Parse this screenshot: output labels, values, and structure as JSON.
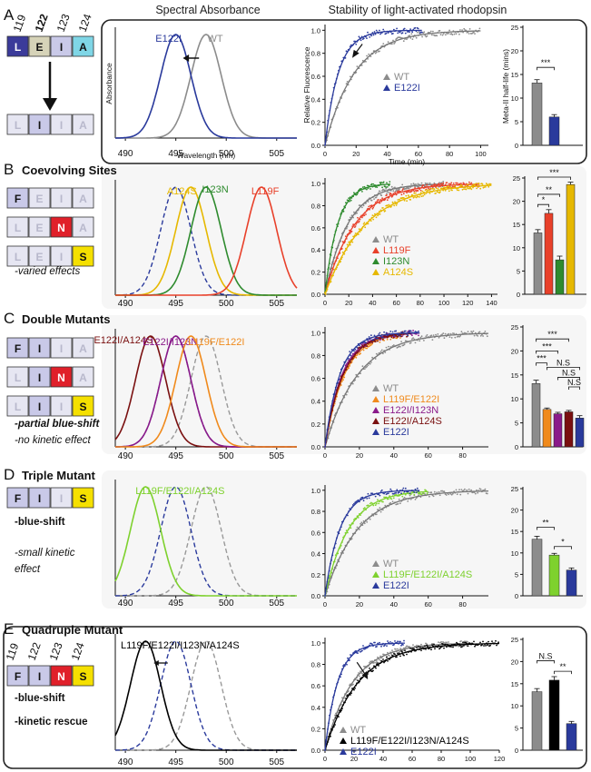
{
  "headers": {
    "spectral": "Spectral Absorbance",
    "stability": "Stability of light-activated rhodopsin"
  },
  "colors": {
    "wt": "#8c8c8c",
    "e122i": "#2a3a9c",
    "l119f": "#e8402a",
    "i123n": "#2e8b2e",
    "a124s": "#e6b800",
    "l119f_e122i": "#f08a1c",
    "e122i_i123n": "#8a1a8a",
    "e122i_a124s": "#7a1010",
    "triple": "#7ed12e",
    "quad": "#000000",
    "box_L": "#3b3b9a",
    "box_E": "#d6d3b8",
    "box_I": "#c9c9e8",
    "box_A": "#7fd6e6",
    "box_F": "#c9c9e8",
    "box_N": "#e0202a",
    "box_S": "#f5e000",
    "box_faded": "#e6e6f2"
  },
  "panels": [
    {
      "letter": "A",
      "title": "",
      "notes": [],
      "residues": [
        "119",
        "122",
        "123",
        "124"
      ],
      "boxes": [
        [
          "L",
          "E",
          "I",
          "A"
        ]
      ],
      "boxes_after": [
        "L",
        "I",
        "I",
        "A"
      ],
      "spec_labels": [
        {
          "text": "E122I",
          "series": "e122i"
        },
        {
          "text": "WT",
          "series": "wt"
        }
      ],
      "kin_legend": [
        {
          "text": "WT",
          "series": "wt"
        },
        {
          "text": "E122I",
          "series": "e122i"
        }
      ],
      "sig": [
        "***"
      ]
    },
    {
      "letter": "B",
      "title": "Coevolving Sites",
      "notes": [
        "-varied effects"
      ],
      "boxes": [
        [
          "F",
          "E",
          "I",
          "A"
        ],
        [
          "L",
          "E",
          "N",
          "A"
        ],
        [
          "L",
          "E",
          "I",
          "S"
        ]
      ],
      "spec_labels": [
        {
          "text": "A124S",
          "series": "a124s"
        },
        {
          "text": "I123N",
          "series": "i123n"
        },
        {
          "text": "L119F",
          "series": "l119f"
        }
      ],
      "kin_legend": [
        {
          "text": "WT",
          "series": "wt"
        },
        {
          "text": "L119F",
          "series": "l119f"
        },
        {
          "text": "I123N",
          "series": "i123n"
        },
        {
          "text": "A124S",
          "series": "a124s"
        }
      ],
      "sig": [
        "***",
        "**",
        "*"
      ]
    },
    {
      "letter": "C",
      "title": "Double Mutants",
      "notes": [
        "-partial blue-shift",
        "-no kinetic effect"
      ],
      "boxes": [
        [
          "F",
          "I",
          "I",
          "A"
        ],
        [
          "L",
          "I",
          "N",
          "A"
        ],
        [
          "L",
          "I",
          "I",
          "S"
        ]
      ],
      "spec_labels": [
        {
          "text": "E122I/A124S",
          "series": "e122i_a124s"
        },
        {
          "text": "E122I/I123N",
          "series": "e122i_i123n"
        },
        {
          "text": "L119F/E122I",
          "series": "l119f_e122i"
        }
      ],
      "kin_legend": [
        {
          "text": "WT",
          "series": "wt"
        },
        {
          "text": "L119F/E122I",
          "series": "l119f_e122i"
        },
        {
          "text": "E122I/I123N",
          "series": "e122i_i123n"
        },
        {
          "text": "E122I/A124S",
          "series": "e122i_a124s"
        },
        {
          "text": "E122I",
          "series": "e122i"
        }
      ],
      "sig": [
        "***",
        "***",
        "***",
        "N.S",
        "N.S",
        "N.S"
      ]
    },
    {
      "letter": "D",
      "title": "Triple Mutant",
      "notes": [
        "-blue-shift",
        "-small kinetic",
        "effect"
      ],
      "boxes": [
        [
          "F",
          "I",
          "I",
          "S"
        ]
      ],
      "spec_labels": [
        {
          "text": "L119F/E122I/A124S",
          "series": "triple"
        }
      ],
      "kin_legend": [
        {
          "text": "WT",
          "series": "wt"
        },
        {
          "text": "L119F/E122I/A124S",
          "series": "triple"
        },
        {
          "text": "E122I",
          "series": "e122i"
        }
      ],
      "sig": [
        "**",
        "*"
      ]
    },
    {
      "letter": "E",
      "title": "Quadruple Mutant",
      "notes": [
        "-blue-shift",
        "-kinetic rescue"
      ],
      "residues": [
        "119",
        "122",
        "123",
        "124"
      ],
      "boxes": [
        [
          "F",
          "I",
          "N",
          "S"
        ]
      ],
      "spec_labels": [
        {
          "text": "L119F/E122I/I123N/A124S",
          "series": "quad"
        }
      ],
      "kin_legend": [
        {
          "text": "WT",
          "series": "wt"
        },
        {
          "text": "L119F/E122I/I123N/A124S",
          "series": "quad"
        },
        {
          "text": "E122I",
          "series": "e122i"
        }
      ],
      "sig": [
        "N.S",
        "**"
      ]
    }
  ],
  "chart_data": [
    {
      "panel": "A-spectral",
      "type": "line",
      "xlabel": "Wavelength (nm)",
      "ylabel": "Absorbance",
      "xticks": [
        490,
        495,
        500,
        505
      ],
      "xlim": [
        489,
        507
      ],
      "series": [
        {
          "name": "WT",
          "peak": 498
        },
        {
          "name": "E122I",
          "peak": 495
        }
      ]
    },
    {
      "panel": "A-kinetics",
      "type": "scatter",
      "xlabel": "Time (min)",
      "ylabel": "Relative Fluorescence",
      "xticks": [
        0,
        20,
        40,
        60,
        80,
        100
      ],
      "yticks": [
        0.0,
        0.2,
        0.4,
        0.6,
        0.8,
        1.0
      ],
      "xlim": [
        0,
        105
      ],
      "ylim": [
        0,
        1.05
      ],
      "series": [
        {
          "name": "WT",
          "half_life": 13.2,
          "tmax": 100
        },
        {
          "name": "E122I",
          "half_life": 6.0,
          "tmax": 63
        }
      ]
    },
    {
      "panel": "A-halflife",
      "type": "bar",
      "ylabel": "Meta-II half-life (mins)",
      "yticks": [
        0,
        5,
        10,
        15,
        20,
        25
      ],
      "ylim": [
        0,
        25
      ],
      "categories": [
        "WT",
        "E122I"
      ],
      "values": [
        13.2,
        6.0
      ],
      "errors": [
        0.7,
        0.5
      ]
    },
    {
      "panel": "B-spectral",
      "type": "line",
      "xticks": [
        490,
        495,
        500,
        505
      ],
      "xlim": [
        489,
        507
      ],
      "series": [
        {
          "name": "E122I",
          "peak": 495,
          "dashed": true
        },
        {
          "name": "A124S",
          "peak": 496.5
        },
        {
          "name": "I123N",
          "peak": 498
        },
        {
          "name": "L119F",
          "peak": 503.5
        }
      ]
    },
    {
      "panel": "B-kinetics",
      "type": "scatter",
      "xticks": [
        0,
        20,
        40,
        60,
        80,
        100,
        120,
        140
      ],
      "yticks": [
        0.0,
        0.2,
        0.4,
        0.6,
        0.8,
        1.0
      ],
      "xlim": [
        0,
        145
      ],
      "ylim": [
        0,
        1.05
      ],
      "series": [
        {
          "name": "WT",
          "half_life": 13.2,
          "tmax": 100
        },
        {
          "name": "L119F",
          "half_life": 17.4,
          "tmax": 130
        },
        {
          "name": "I123N",
          "half_life": 7.4,
          "tmax": 55
        },
        {
          "name": "A124S",
          "half_life": 23.6,
          "tmax": 140
        }
      ]
    },
    {
      "panel": "B-halflife",
      "type": "bar",
      "yticks": [
        0,
        5,
        10,
        15,
        20,
        25
      ],
      "ylim": [
        0,
        25
      ],
      "categories": [
        "WT",
        "L119F",
        "I123N",
        "A124S"
      ],
      "values": [
        13.2,
        17.4,
        7.4,
        23.6
      ],
      "errors": [
        0.7,
        0.8,
        0.8,
        0.5
      ]
    },
    {
      "panel": "C-spectral",
      "type": "line",
      "xticks": [
        490,
        495,
        500,
        505
      ],
      "xlim": [
        489,
        507
      ],
      "series": [
        {
          "name": "WT",
          "peak": 498,
          "dashed": true
        },
        {
          "name": "E122I",
          "peak": 495,
          "dashed": true
        },
        {
          "name": "E122I/A124S",
          "peak": 492.5
        },
        {
          "name": "E122I/I123N",
          "peak": 495
        },
        {
          "name": "L119F/E122I",
          "peak": 496.5
        }
      ]
    },
    {
      "panel": "C-kinetics",
      "type": "scatter",
      "xticks": [
        0,
        20,
        40,
        60,
        80
      ],
      "yticks": [
        0.0,
        0.2,
        0.4,
        0.6,
        0.8,
        1.0
      ],
      "xlim": [
        0,
        95
      ],
      "ylim": [
        0,
        1.05
      ],
      "series": [
        {
          "name": "WT",
          "half_life": 13.2,
          "tmax": 95
        },
        {
          "name": "L119F/E122I",
          "half_life": 7.8,
          "tmax": 45
        },
        {
          "name": "E122I/I123N",
          "half_life": 6.9,
          "tmax": 55
        },
        {
          "name": "E122I/A124S",
          "half_life": 7.3,
          "tmax": 50
        },
        {
          "name": "E122I",
          "half_life": 6.0,
          "tmax": 55
        }
      ]
    },
    {
      "panel": "C-halflife",
      "type": "bar",
      "yticks": [
        0,
        5,
        10,
        15,
        20,
        25
      ],
      "ylim": [
        0,
        25
      ],
      "categories": [
        "WT",
        "L119F/E122I",
        "E122I/I123N",
        "E122I/A124S",
        "E122I"
      ],
      "values": [
        13.2,
        7.8,
        6.9,
        7.3,
        6.0
      ],
      "errors": [
        0.7,
        0.3,
        0.3,
        0.3,
        0.5
      ]
    },
    {
      "panel": "D-spectral",
      "type": "line",
      "xticks": [
        490,
        495,
        500,
        505
      ],
      "xlim": [
        489,
        507
      ],
      "series": [
        {
          "name": "WT",
          "peak": 498,
          "dashed": true
        },
        {
          "name": "E122I",
          "peak": 495,
          "dashed": true
        },
        {
          "name": "L119F/E122I/A124S",
          "peak": 492
        }
      ]
    },
    {
      "panel": "D-kinetics",
      "type": "scatter",
      "xticks": [
        0,
        20,
        40,
        60,
        80
      ],
      "yticks": [
        0.0,
        0.2,
        0.4,
        0.6,
        0.8,
        1.0
      ],
      "xlim": [
        0,
        95
      ],
      "ylim": [
        0,
        1.05
      ],
      "series": [
        {
          "name": "WT",
          "half_life": 13.2,
          "tmax": 95
        },
        {
          "name": "L119F/E122I/A124S",
          "half_life": 9.5,
          "tmax": 60
        },
        {
          "name": "E122I",
          "half_life": 6.0,
          "tmax": 55
        }
      ]
    },
    {
      "panel": "D-halflife",
      "type": "bar",
      "yticks": [
        0,
        5,
        10,
        15,
        20,
        25
      ],
      "ylim": [
        0,
        25
      ],
      "categories": [
        "WT",
        "L119F/E122I/A124S",
        "E122I"
      ],
      "values": [
        13.2,
        9.5,
        6.0
      ],
      "errors": [
        0.7,
        0.4,
        0.5
      ]
    },
    {
      "panel": "E-spectral",
      "type": "line",
      "xticks": [
        490,
        495,
        500,
        505
      ],
      "xlim": [
        489,
        507
      ],
      "series": [
        {
          "name": "WT",
          "peak": 498,
          "dashed": true
        },
        {
          "name": "E122I",
          "peak": 495,
          "dashed": true
        },
        {
          "name": "L119F/E122I/I123N/A124S",
          "peak": 492
        }
      ]
    },
    {
      "panel": "E-kinetics",
      "type": "scatter",
      "xticks": [
        0,
        20,
        40,
        60,
        80,
        100,
        120
      ],
      "yticks": [
        0.0,
        0.2,
        0.4,
        0.6,
        0.8,
        1.0
      ],
      "xlim": [
        0,
        120
      ],
      "ylim": [
        0,
        1.05
      ],
      "series": [
        {
          "name": "WT",
          "half_life": 13.2,
          "tmax": 100
        },
        {
          "name": "L119F/E122I/I123N/A124S",
          "half_life": 15.8,
          "tmax": 120
        },
        {
          "name": "E122I",
          "half_life": 6.0,
          "tmax": 55
        }
      ]
    },
    {
      "panel": "E-halflife",
      "type": "bar",
      "yticks": [
        0,
        5,
        10,
        15,
        20,
        25
      ],
      "ylim": [
        0,
        25
      ],
      "categories": [
        "WT",
        "L119F/E122I/I123N/A124S",
        "E122I"
      ],
      "values": [
        13.2,
        15.8,
        6.0
      ],
      "errors": [
        0.7,
        0.8,
        0.5
      ]
    }
  ]
}
